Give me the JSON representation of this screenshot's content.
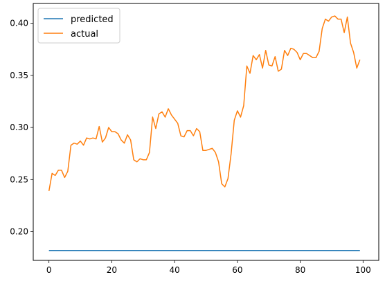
{
  "chart_data": {
    "type": "line",
    "title": "",
    "xlabel": "",
    "ylabel": "",
    "xlim": [
      -5,
      105
    ],
    "ylim": [
      0.1725,
      0.419
    ],
    "xticks": [
      0,
      20,
      40,
      60,
      80,
      100
    ],
    "yticks": [
      0.2,
      0.25,
      0.3,
      0.35,
      0.4
    ],
    "x_tick_labels": [
      "0",
      "20",
      "40",
      "60",
      "80",
      "100"
    ],
    "y_tick_labels": [
      "0.20",
      "0.25",
      "0.30",
      "0.35",
      "0.40"
    ],
    "grid": false,
    "legend": {
      "position": "top-left",
      "entries": [
        "predicted",
        "actual"
      ]
    },
    "series": [
      {
        "name": "predicted",
        "color": "#1f77b4",
        "x": [
          0,
          99
        ],
        "values": [
          0.182,
          0.182
        ]
      },
      {
        "name": "actual",
        "color": "#ff7f0e",
        "x": [
          0,
          1,
          2,
          3,
          4,
          5,
          6,
          7,
          8,
          9,
          10,
          11,
          12,
          13,
          14,
          15,
          16,
          17,
          18,
          19,
          20,
          21,
          22,
          23,
          24,
          25,
          26,
          27,
          28,
          29,
          30,
          31,
          32,
          33,
          34,
          35,
          36,
          37,
          38,
          39,
          40,
          41,
          42,
          43,
          44,
          45,
          46,
          47,
          48,
          49,
          50,
          51,
          52,
          53,
          54,
          55,
          56,
          57,
          58,
          59,
          60,
          61,
          62,
          63,
          64,
          65,
          66,
          67,
          68,
          69,
          70,
          71,
          72,
          73,
          74,
          75,
          76,
          77,
          78,
          79,
          80,
          81,
          82,
          83,
          84,
          85,
          86,
          87,
          88,
          89,
          90,
          91,
          92,
          93,
          94,
          95,
          96,
          97,
          98,
          99
        ],
        "values": [
          0.239,
          0.256,
          0.254,
          0.259,
          0.259,
          0.252,
          0.258,
          0.283,
          0.285,
          0.284,
          0.287,
          0.283,
          0.29,
          0.289,
          0.29,
          0.289,
          0.301,
          0.286,
          0.29,
          0.3,
          0.296,
          0.296,
          0.294,
          0.288,
          0.285,
          0.293,
          0.288,
          0.269,
          0.267,
          0.27,
          0.269,
          0.269,
          0.276,
          0.31,
          0.299,
          0.313,
          0.315,
          0.31,
          0.318,
          0.312,
          0.308,
          0.304,
          0.292,
          0.291,
          0.297,
          0.297,
          0.292,
          0.299,
          0.296,
          0.278,
          0.278,
          0.279,
          0.28,
          0.276,
          0.267,
          0.246,
          0.243,
          0.251,
          0.275,
          0.307,
          0.316,
          0.31,
          0.321,
          0.359,
          0.352,
          0.369,
          0.365,
          0.37,
          0.357,
          0.374,
          0.36,
          0.359,
          0.368,
          0.354,
          0.356,
          0.374,
          0.369,
          0.376,
          0.375,
          0.372,
          0.365,
          0.371,
          0.371,
          0.369,
          0.367,
          0.367,
          0.373,
          0.395,
          0.404,
          0.402,
          0.406,
          0.407,
          0.404,
          0.404,
          0.391,
          0.406,
          0.381,
          0.372,
          0.357,
          0.365
        ]
      }
    ]
  }
}
